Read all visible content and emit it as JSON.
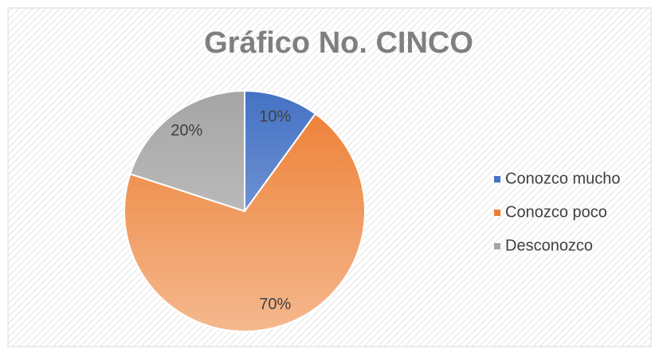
{
  "chart_data": {
    "type": "pie",
    "title": "Gráfico No. CINCO",
    "categories": [
      "Conozco mucho",
      "Conozco poco",
      "Desconozco"
    ],
    "values": [
      10,
      70,
      20
    ],
    "value_labels": [
      "10%",
      "70%",
      "20%"
    ],
    "colors": [
      "#4472c4",
      "#ed7d31",
      "#a5a5a5"
    ],
    "legend": "right"
  }
}
